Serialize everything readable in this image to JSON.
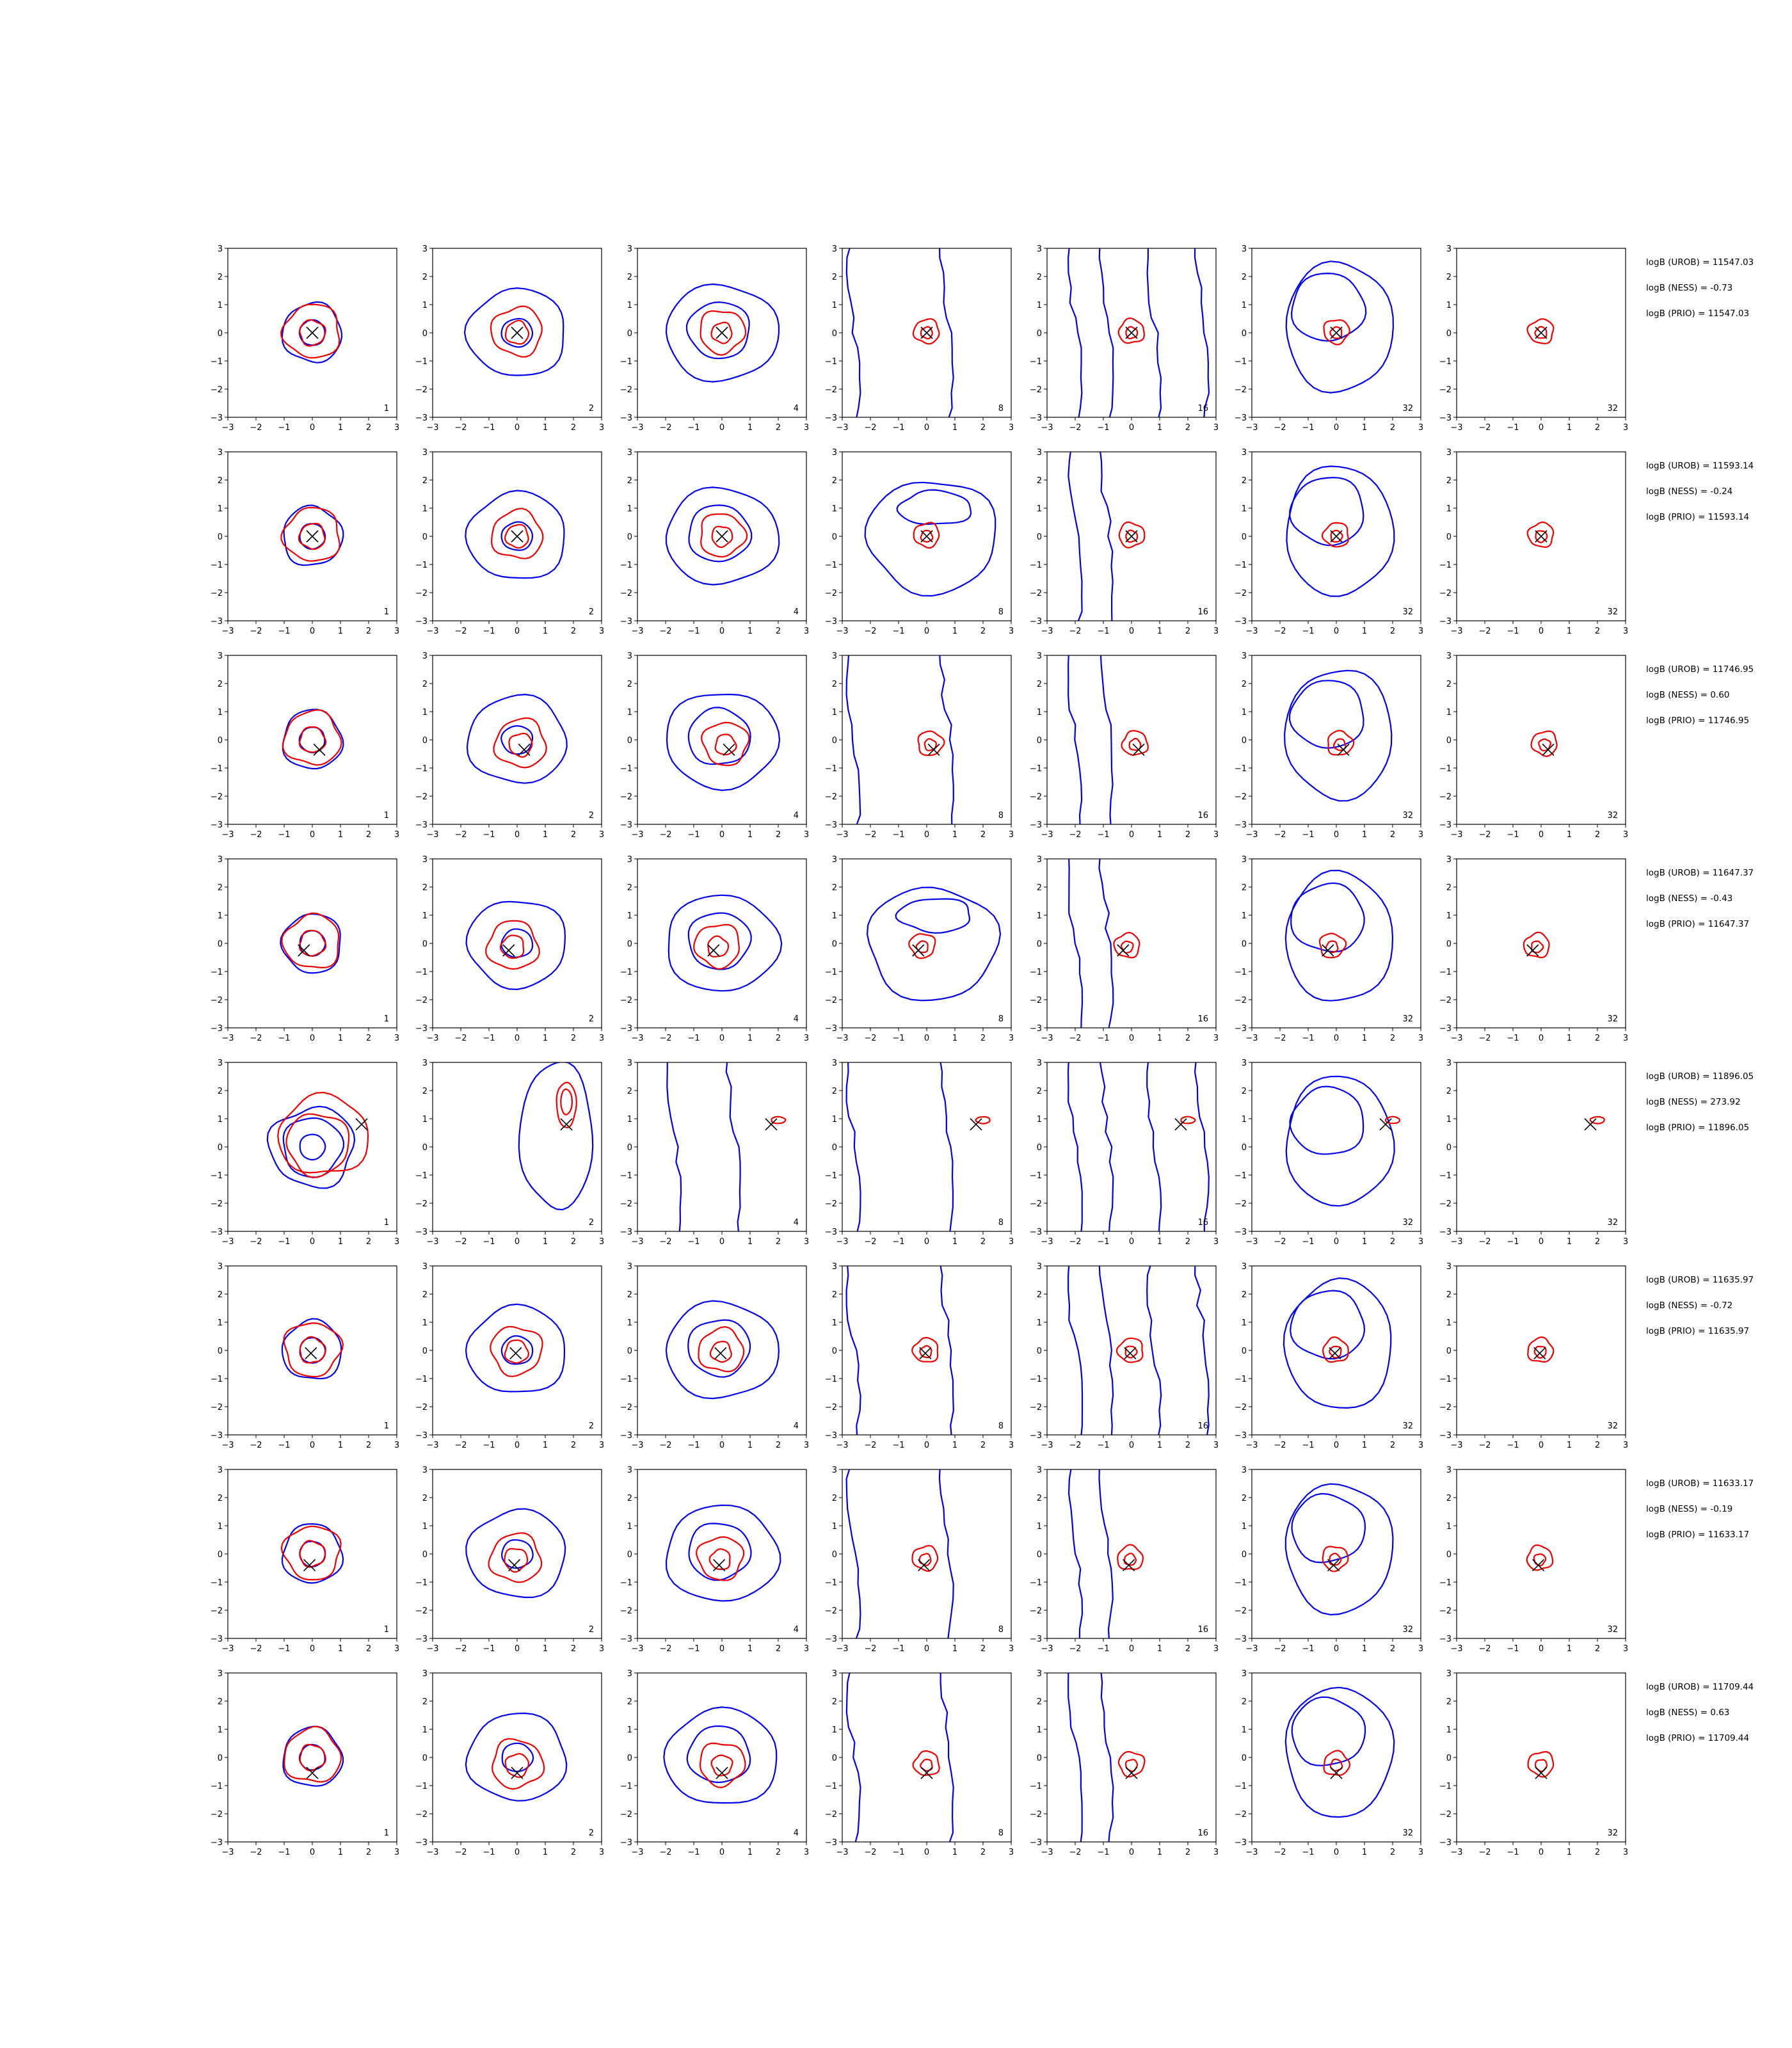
{
  "figure": {
    "tick_values": [
      -3,
      -2,
      -1,
      0,
      1,
      2,
      3
    ],
    "tick_labels": [
      "−3",
      "−2",
      "−1",
      "0",
      "1",
      "2",
      "3"
    ],
    "xlim": [
      -3,
      3
    ],
    "ylim": [
      -3,
      3
    ],
    "colors": {
      "blue": "#0000ee",
      "red": "#ee0000",
      "marker": "#000000",
      "frame": "#000000"
    }
  },
  "chart_data": {
    "type": "contour-grid",
    "rows": [
      {
        "marker": [
          0.0,
          0.0
        ],
        "panel_labels": [
          "1",
          "2",
          "4",
          "8",
          "16",
          "32",
          "32"
        ],
        "info": [
          "logB (UROB) = 11547.03",
          "logB (NESS) = -0.73",
          "logB (PRIO) = 11547.03"
        ]
      },
      {
        "marker": [
          0.0,
          0.0
        ],
        "panel_labels": [
          "1",
          "2",
          "4",
          "8",
          "16",
          "32",
          "32"
        ],
        "info": [
          "logB (UROB) = 11593.14",
          "logB (NESS) = -0.24",
          "logB (PRIO) = 11593.14"
        ]
      },
      {
        "marker": [
          0.25,
          -0.35
        ],
        "panel_labels": [
          "1",
          "2",
          "4",
          "8",
          "16",
          "32",
          "32"
        ],
        "info": [
          "logB (UROB) = 11746.95",
          "logB (NESS) = 0.60",
          "logB (PRIO) = 11746.95"
        ]
      },
      {
        "marker": [
          -0.3,
          -0.25
        ],
        "panel_labels": [
          "1",
          "2",
          "4",
          "8",
          "16",
          "32",
          "32"
        ],
        "info": [
          "logB (UROB) = 11647.37",
          "logB (NESS) = -0.43",
          "logB (PRIO) = 11647.37"
        ]
      },
      {
        "marker": [
          1.75,
          0.8
        ],
        "panel_labels": [
          "1",
          "2",
          "4",
          "8",
          "16",
          "32",
          "32"
        ],
        "info": [
          "logB (UROB) = 11896.05",
          "logB (NESS) = 273.92",
          "logB (PRIO) = 11896.05"
        ]
      },
      {
        "marker": [
          -0.05,
          -0.1
        ],
        "panel_labels": [
          "1",
          "2",
          "4",
          "8",
          "16",
          "32",
          "32"
        ],
        "info": [
          "logB (UROB) = 11635.97",
          "logB (NESS) = -0.72",
          "logB (PRIO) = 11635.97"
        ]
      },
      {
        "marker": [
          -0.1,
          -0.4
        ],
        "panel_labels": [
          "1",
          "2",
          "4",
          "8",
          "16",
          "32",
          "32"
        ],
        "info": [
          "logB (UROB) = 11633.17",
          "logB (NESS) = -0.19",
          "logB (PRIO) = 11633.17"
        ]
      },
      {
        "marker": [
          0.0,
          -0.55
        ],
        "panel_labels": [
          "1",
          "2",
          "4",
          "8",
          "16",
          "32",
          "32"
        ],
        "info": [
          "logB (UROB) = 11709.44",
          "logB (NESS) = 0.63",
          "logB (PRIO) = 11709.44"
        ]
      }
    ]
  }
}
